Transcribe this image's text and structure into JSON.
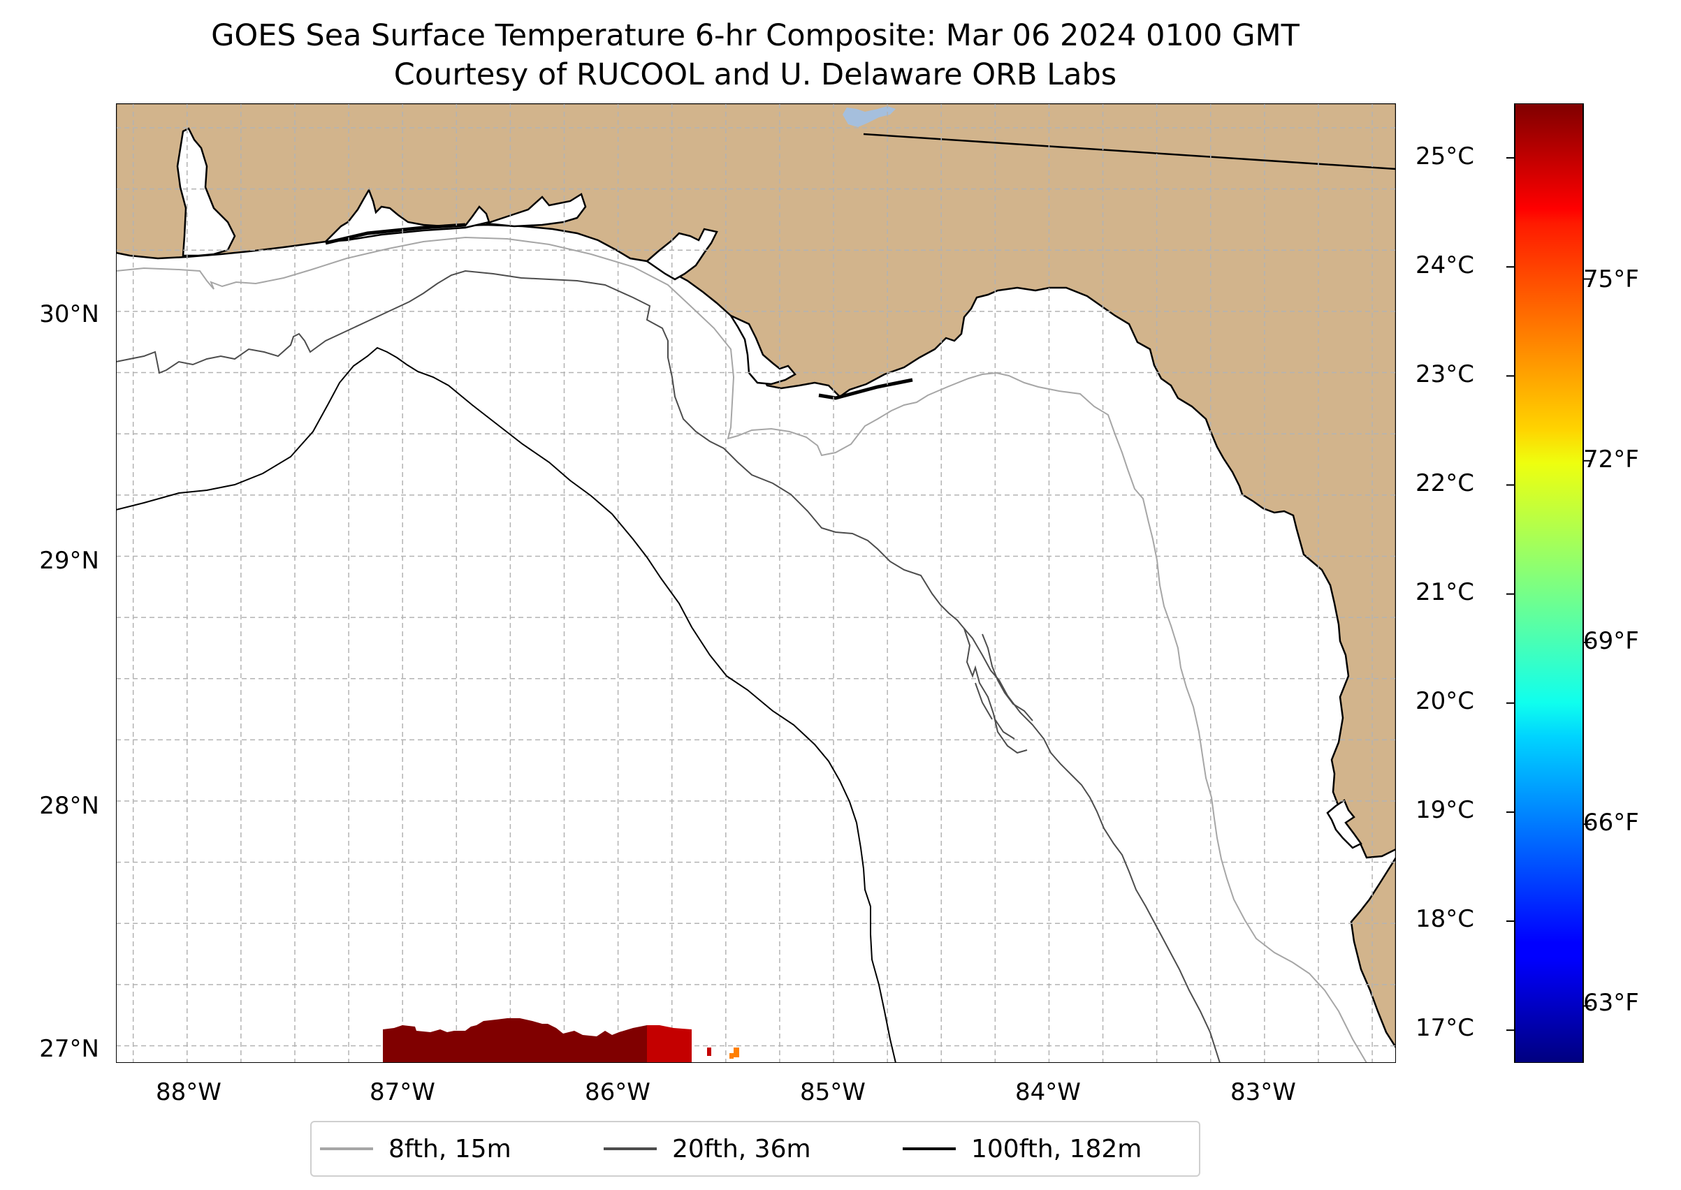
{
  "title": "GOES Sea Surface Temperature 6-hr Composite: Mar 06 2024 0100 GMT",
  "subtitle": "Courtesy of RUCOOL and U. Delaware ORB Labs",
  "map": {
    "lat_range": [
      26.93,
      30.85
    ],
    "lon_range": [
      -88.33,
      -82.39
    ],
    "lat_ticks": [
      30,
      29,
      28,
      27
    ],
    "lon_ticks": [
      -88,
      -87,
      -86,
      -85,
      -84,
      -83
    ],
    "lat_tick_labels": [
      "30°N",
      "29°N",
      "28°N",
      "27°N"
    ],
    "lon_tick_labels": [
      "88°W",
      "87°W",
      "86°W",
      "85°W",
      "84°W",
      "83°W"
    ],
    "land_color": "#d2b48c",
    "water_color": "#ffffff",
    "gridlines": true
  },
  "colorbar": {
    "colormap": "jet",
    "range_c": [
      16.7,
      25.5
    ],
    "celsius_labels": [
      "25°C",
      "24°C",
      "23°C",
      "22°C",
      "21°C",
      "20°C",
      "19°C",
      "18°C",
      "17°C"
    ],
    "celsius_values": [
      25,
      24,
      23,
      22,
      21,
      20,
      19,
      18,
      17
    ],
    "fahrenheit_labels": [
      "75°F",
      "72°F",
      "69°F",
      "66°F",
      "63°F"
    ],
    "fahrenheit_values": [
      75,
      72,
      69,
      66,
      63
    ]
  },
  "legend": {
    "items": [
      {
        "label": "8fth, 15m",
        "color": "#a6a6a6"
      },
      {
        "label": "20fth, 36m",
        "color": "#4d4d4d"
      },
      {
        "label": "100fth, 182m",
        "color": "#000000"
      }
    ]
  },
  "sst_patch_colors": [
    "#800000",
    "#c40000",
    "#ff7f00"
  ]
}
